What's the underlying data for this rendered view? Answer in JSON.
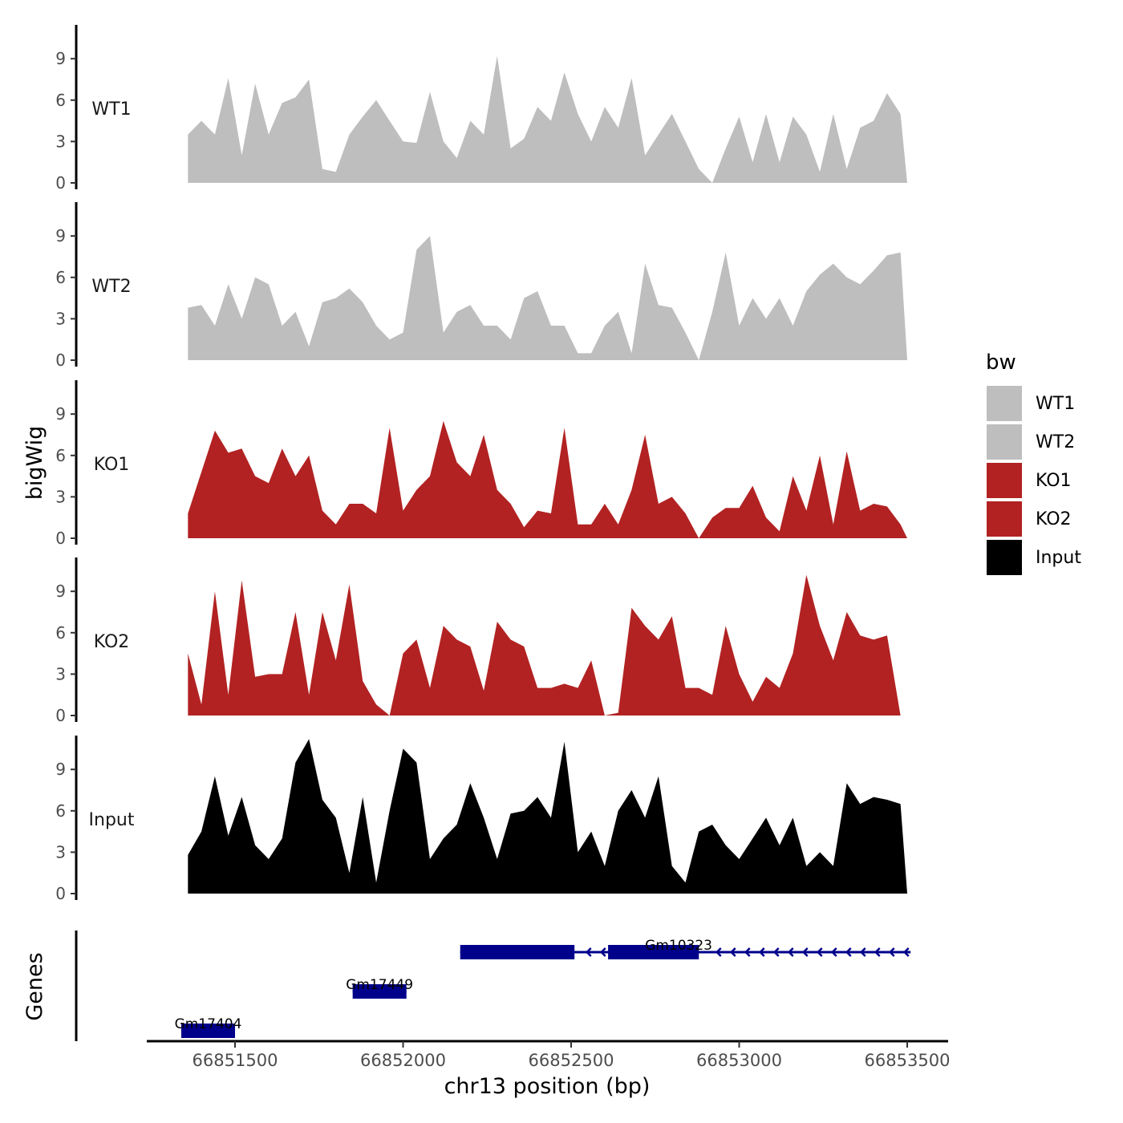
{
  "chart_data": {
    "type": "area",
    "title": "",
    "xlabel": "chr13 position (bp)",
    "ylabel": "bigWig",
    "genes_label": "Genes",
    "xlim": [
      66851300,
      66853600
    ],
    "x_ticks": [
      66851500,
      66852000,
      66852500,
      66853000,
      66853500
    ],
    "x_tick_labels": [
      "66851500",
      "66852000",
      "66852500",
      "66853000",
      "66853500"
    ],
    "ylim": [
      0,
      11.5
    ],
    "y_ticks": [
      0,
      3,
      6,
      9
    ],
    "legend": {
      "title": "bw",
      "position": "right",
      "entries": [
        {
          "label": "WT1",
          "color": "#bebebe"
        },
        {
          "label": "WT2",
          "color": "#bebebe"
        },
        {
          "label": "KO1",
          "color": "#b22222"
        },
        {
          "label": "KO2",
          "color": "#b22222"
        },
        {
          "label": "Input",
          "color": "#000000"
        }
      ]
    },
    "x": [
      66851360,
      66851400,
      66851440,
      66851480,
      66851520,
      66851560,
      66851600,
      66851640,
      66851680,
      66851720,
      66851760,
      66851800,
      66851840,
      66851880,
      66851920,
      66851960,
      66852000,
      66852040,
      66852080,
      66852120,
      66852160,
      66852200,
      66852240,
      66852280,
      66852320,
      66852360,
      66852400,
      66852440,
      66852480,
      66852520,
      66852560,
      66852600,
      66852640,
      66852680,
      66852720,
      66852760,
      66852800,
      66852840,
      66852880,
      66852920,
      66852960,
      66853000,
      66853040,
      66853080,
      66853120,
      66853160,
      66853200,
      66853240,
      66853280,
      66853320,
      66853360,
      66853400,
      66853440,
      66853480,
      66853500
    ],
    "series": [
      {
        "name": "WT1",
        "color": "#bebebe",
        "values": [
          3.5,
          4.5,
          3.5,
          7.6,
          2.0,
          7.2,
          3.5,
          5.8,
          6.2,
          7.5,
          1.0,
          0.8,
          3.5,
          4.8,
          6.0,
          4.5,
          3.0,
          2.9,
          6.6,
          3.0,
          1.8,
          4.5,
          3.5,
          9.2,
          2.5,
          3.2,
          5.5,
          4.5,
          8.0,
          5.0,
          3.0,
          5.5,
          4.0,
          7.6,
          2.0,
          3.5,
          5.0,
          3.0,
          1.0,
          0.0,
          2.5,
          4.8,
          1.5,
          5.0,
          1.5,
          4.8,
          3.5,
          0.8,
          5.0,
          1.0,
          4.0,
          4.5,
          6.5,
          5.0,
          0.0
        ]
      },
      {
        "name": "WT2",
        "color": "#bebebe",
        "values": [
          3.8,
          4.0,
          2.5,
          5.5,
          3.0,
          6.0,
          5.5,
          2.5,
          3.5,
          1.0,
          4.2,
          4.5,
          5.2,
          4.2,
          2.5,
          1.5,
          2.0,
          8.0,
          9.0,
          2.0,
          3.5,
          4.0,
          2.5,
          2.5,
          1.5,
          4.5,
          5.0,
          2.5,
          2.5,
          0.5,
          0.5,
          2.5,
          3.5,
          0.5,
          7.0,
          4.0,
          3.8,
          2.0,
          0.0,
          3.5,
          7.8,
          2.5,
          4.5,
          3.0,
          4.5,
          2.5,
          5.0,
          6.2,
          7.0,
          6.0,
          5.5,
          6.5,
          7.6,
          7.8,
          0.0
        ]
      },
      {
        "name": "KO1",
        "color": "#b22222",
        "values": [
          1.8,
          4.8,
          7.8,
          6.2,
          6.5,
          4.5,
          4.0,
          6.5,
          4.5,
          6.0,
          2.0,
          1.0,
          2.5,
          2.5,
          1.8,
          8.0,
          2.0,
          3.5,
          4.5,
          8.5,
          5.5,
          4.5,
          7.5,
          3.5,
          2.5,
          0.8,
          2.0,
          1.8,
          8.0,
          1.0,
          1.0,
          2.5,
          1.0,
          3.5,
          7.5,
          2.5,
          3.0,
          1.8,
          0.0,
          1.5,
          2.2,
          2.2,
          3.8,
          1.5,
          0.5,
          4.5,
          2.0,
          6.0,
          1.0,
          6.3,
          2.0,
          2.5,
          2.3,
          1.0,
          0.0
        ]
      },
      {
        "name": "KO2",
        "color": "#b22222",
        "values": [
          4.5,
          0.8,
          9.0,
          1.5,
          9.8,
          2.8,
          3.0,
          3.0,
          7.5,
          1.5,
          7.5,
          4.0,
          9.5,
          2.5,
          0.8,
          0.0,
          4.5,
          5.5,
          2.0,
          6.5,
          5.5,
          5.0,
          1.8,
          6.8,
          5.5,
          5.0,
          2.0,
          2.0,
          2.3,
          2.0,
          4.0,
          0.0,
          0.2,
          7.8,
          6.5,
          5.5,
          7.2,
          2.0,
          2.0,
          1.5,
          6.5,
          3.0,
          1.0,
          2.8,
          2.0,
          4.5,
          10.2,
          6.5,
          4.0,
          7.5,
          5.8,
          5.5,
          5.8,
          0.0,
          0.0
        ]
      },
      {
        "name": "Input",
        "color": "#000000",
        "values": [
          2.8,
          4.5,
          8.5,
          4.2,
          7.0,
          3.5,
          2.5,
          4.0,
          9.5,
          11.2,
          6.8,
          5.5,
          1.5,
          7.0,
          0.8,
          6.0,
          10.5,
          9.5,
          2.5,
          4.0,
          5.0,
          8.0,
          5.5,
          2.5,
          5.8,
          6.0,
          7.0,
          5.5,
          11.0,
          3.0,
          4.5,
          2.0,
          6.0,
          7.5,
          5.5,
          8.5,
          2.0,
          0.8,
          4.5,
          5.0,
          3.5,
          2.5,
          4.0,
          5.5,
          3.5,
          5.5,
          2.0,
          3.0,
          2.0,
          8.0,
          6.5,
          7.0,
          6.8,
          6.5,
          0.0
        ]
      }
    ],
    "genes": [
      {
        "name": "Gm10323",
        "row": 1,
        "start": 66852170,
        "end": 66853510,
        "exons": [
          [
            66852170,
            66852510
          ],
          [
            66852610,
            66852880
          ]
        ],
        "strand": "-"
      },
      {
        "name": "Gm17449",
        "row": 2,
        "start": 66851850,
        "end": 66852010,
        "exons": [
          [
            66851850,
            66852010
          ]
        ],
        "strand": "-"
      },
      {
        "name": "Gm17404",
        "row": 3,
        "start": 66851340,
        "end": 66851500,
        "exons": [
          [
            66851340,
            66851500
          ]
        ],
        "strand": "-"
      }
    ]
  }
}
